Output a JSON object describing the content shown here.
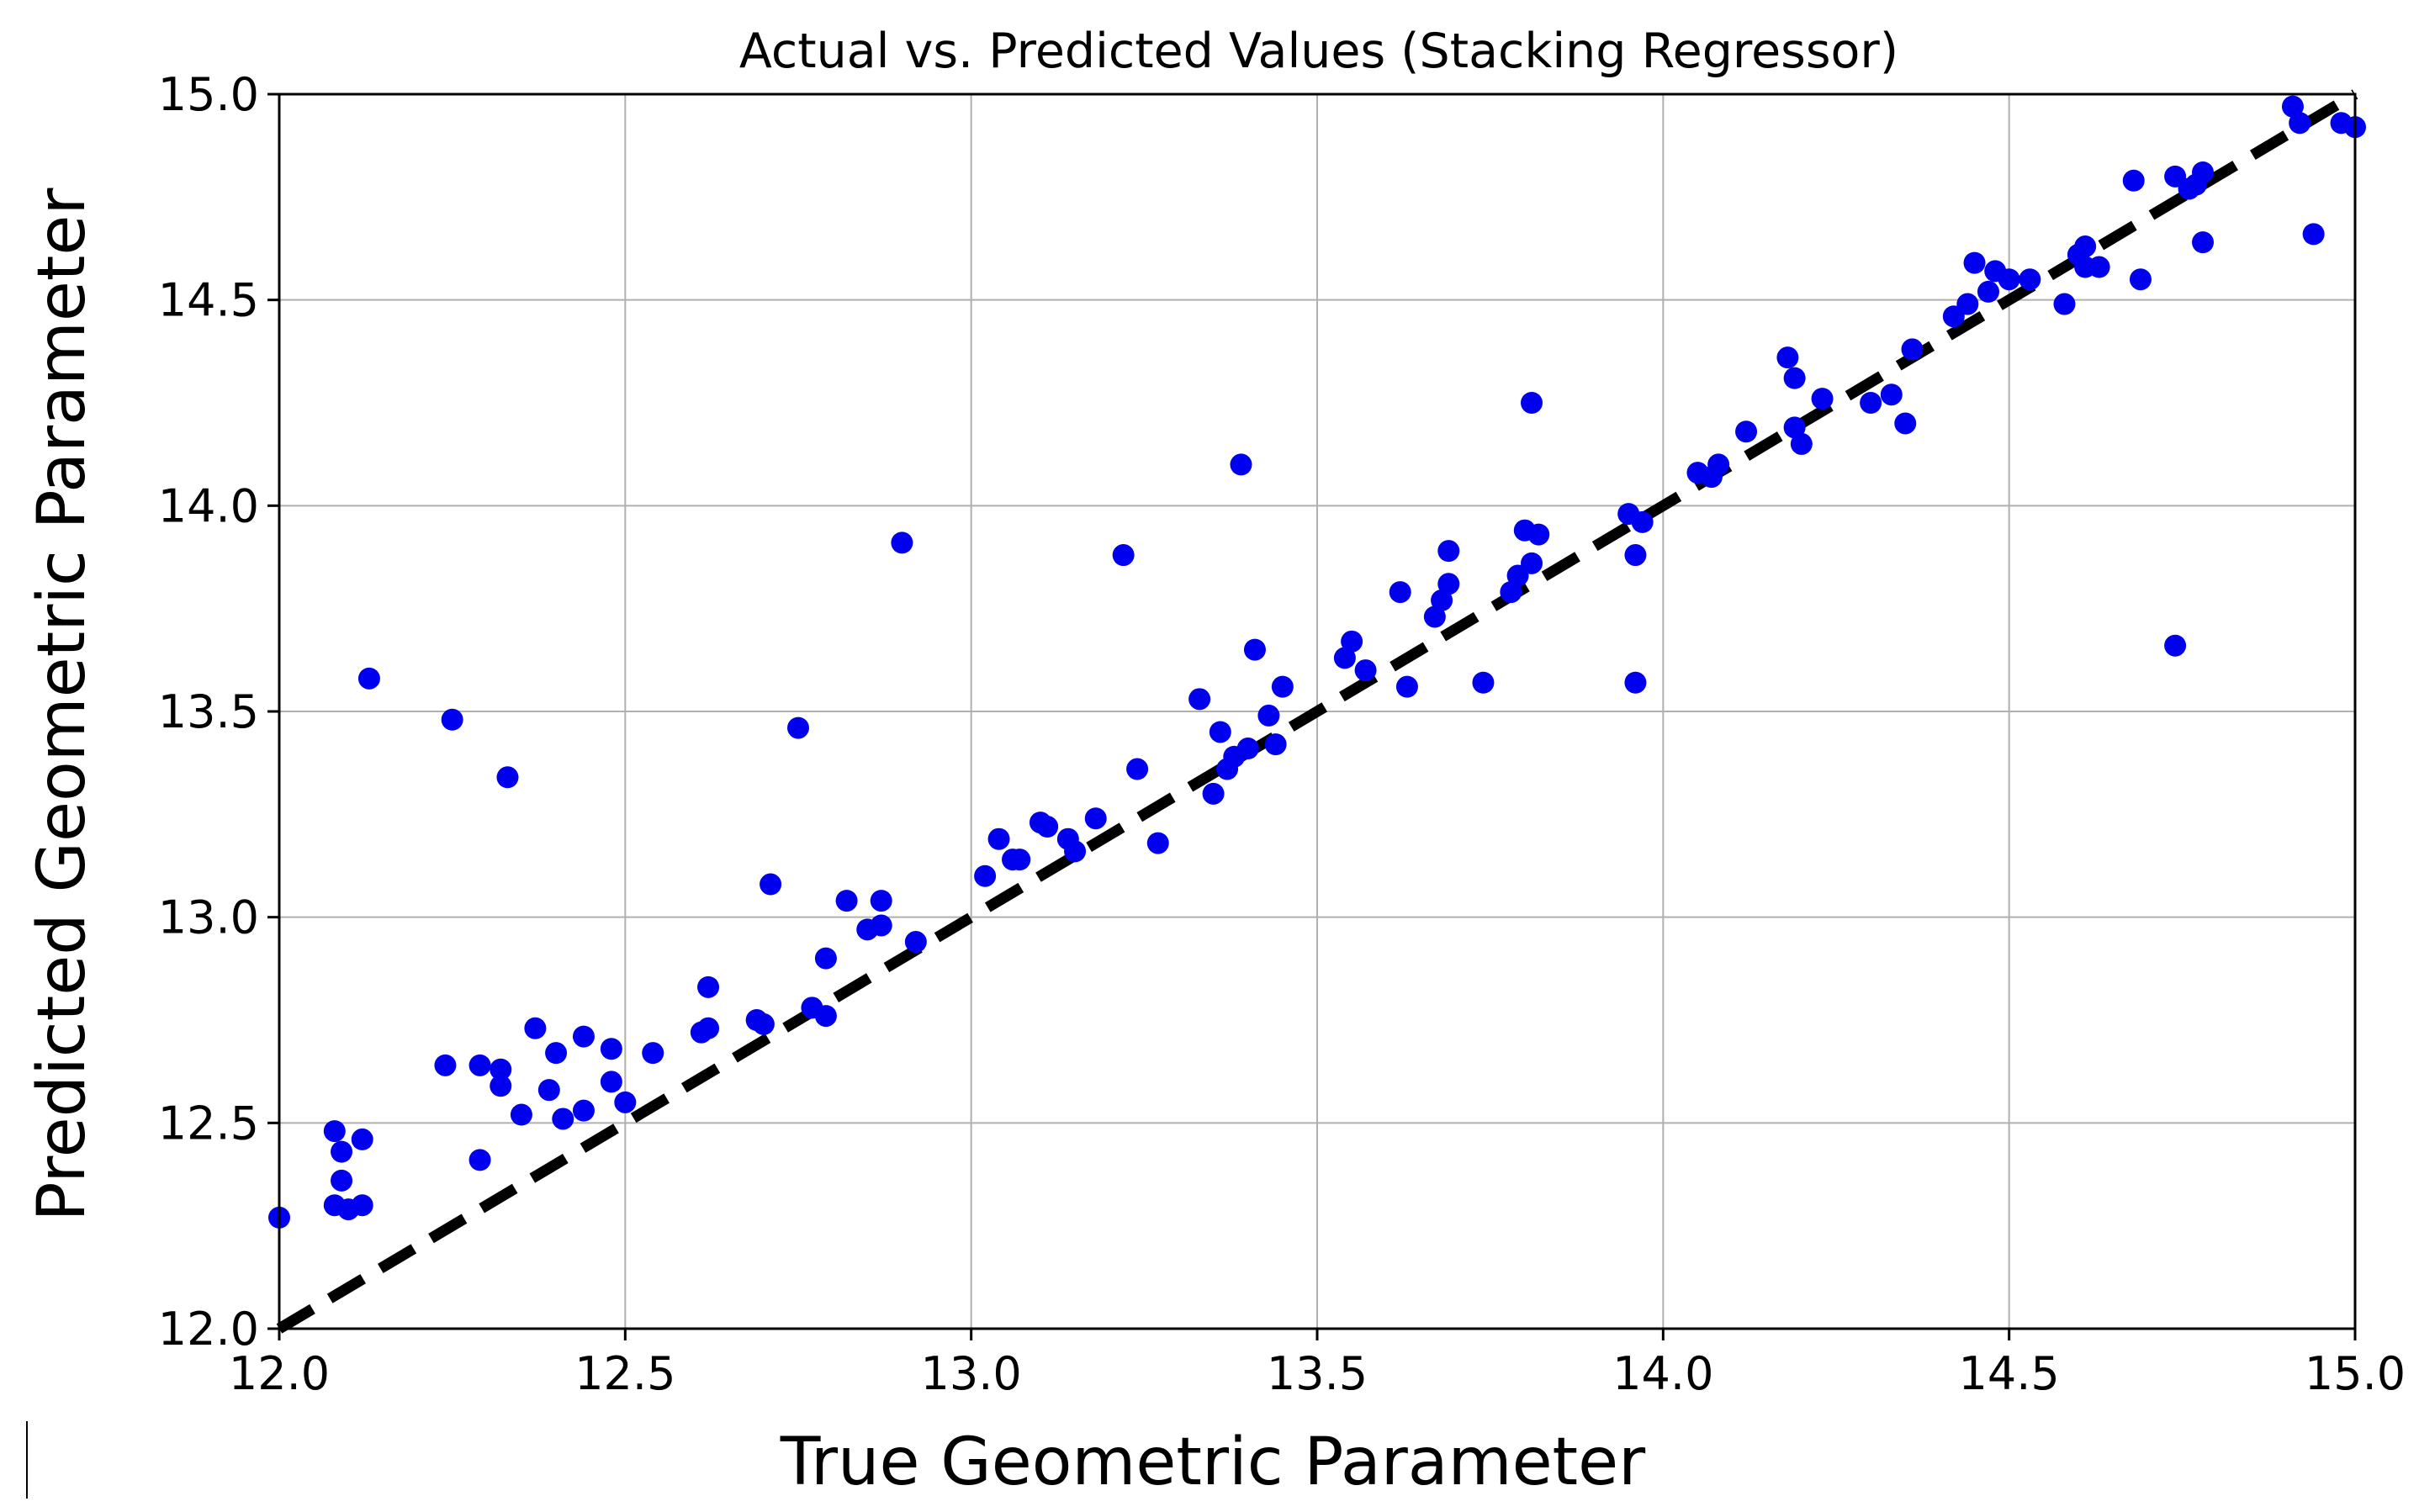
{
  "chart_data": {
    "type": "scatter",
    "title": "Actual vs. Predicted Values (Stacking Regressor)",
    "xlabel": "True Geometric Parameter",
    "ylabel": "Predicted Geometric Parameter",
    "xlim": [
      12.0,
      15.0
    ],
    "ylim": [
      12.0,
      15.0
    ],
    "xticks": [
      "12.0",
      "12.5",
      "13.0",
      "13.5",
      "14.0",
      "14.5",
      "15.0"
    ],
    "yticks": [
      "12.0",
      "12.5",
      "13.0",
      "13.5",
      "14.0",
      "14.5",
      "15.0"
    ],
    "grid": true,
    "point_color": "#0000ee",
    "reference_line": {
      "from": [
        12.0,
        12.0
      ],
      "to": [
        15.0,
        15.0
      ],
      "style": "dashed",
      "color": "#000000"
    },
    "points": [
      [
        12.0,
        12.27
      ],
      [
        12.08,
        12.48
      ],
      [
        12.08,
        12.3
      ],
      [
        12.09,
        12.43
      ],
      [
        12.09,
        12.36
      ],
      [
        12.1,
        12.29
      ],
      [
        12.12,
        12.3
      ],
      [
        12.12,
        12.46
      ],
      [
        12.13,
        13.58
      ],
      [
        12.24,
        12.64
      ],
      [
        12.25,
        13.48
      ],
      [
        12.29,
        12.41
      ],
      [
        12.29,
        12.64
      ],
      [
        12.32,
        12.63
      ],
      [
        12.32,
        12.59
      ],
      [
        12.33,
        13.34
      ],
      [
        12.35,
        12.52
      ],
      [
        12.37,
        12.73
      ],
      [
        12.39,
        12.58
      ],
      [
        12.4,
        12.67
      ],
      [
        12.41,
        12.51
      ],
      [
        12.44,
        12.53
      ],
      [
        12.44,
        12.71
      ],
      [
        12.48,
        12.68
      ],
      [
        12.48,
        12.6
      ],
      [
        12.5,
        12.55
      ],
      [
        12.54,
        12.67
      ],
      [
        12.61,
        12.72
      ],
      [
        12.62,
        12.73
      ],
      [
        12.62,
        12.83
      ],
      [
        12.69,
        12.75
      ],
      [
        12.7,
        12.74
      ],
      [
        12.71,
        13.08
      ],
      [
        12.75,
        13.46
      ],
      [
        12.77,
        12.78
      ],
      [
        12.79,
        12.9
      ],
      [
        12.79,
        12.76
      ],
      [
        12.82,
        13.04
      ],
      [
        12.85,
        12.97
      ],
      [
        12.87,
        12.98
      ],
      [
        12.87,
        13.04
      ],
      [
        12.9,
        13.91
      ],
      [
        12.92,
        12.94
      ],
      [
        13.02,
        13.1
      ],
      [
        13.04,
        13.19
      ],
      [
        13.06,
        13.14
      ],
      [
        13.07,
        13.14
      ],
      [
        13.1,
        13.23
      ],
      [
        13.11,
        13.22
      ],
      [
        13.14,
        13.19
      ],
      [
        13.15,
        13.16
      ],
      [
        13.18,
        13.24
      ],
      [
        13.22,
        13.88
      ],
      [
        13.24,
        13.36
      ],
      [
        13.27,
        13.18
      ],
      [
        13.33,
        13.53
      ],
      [
        13.35,
        13.3
      ],
      [
        13.36,
        13.45
      ],
      [
        13.37,
        13.36
      ],
      [
        13.38,
        13.39
      ],
      [
        13.39,
        14.1
      ],
      [
        13.4,
        13.41
      ],
      [
        13.41,
        13.65
      ],
      [
        13.43,
        13.49
      ],
      [
        13.44,
        13.42
      ],
      [
        13.45,
        13.56
      ],
      [
        13.54,
        13.63
      ],
      [
        13.55,
        13.67
      ],
      [
        13.57,
        13.6
      ],
      [
        13.62,
        13.79
      ],
      [
        13.63,
        13.56
      ],
      [
        13.67,
        13.73
      ],
      [
        13.68,
        13.77
      ],
      [
        13.69,
        13.81
      ],
      [
        13.69,
        13.89
      ],
      [
        13.74,
        13.57
      ],
      [
        13.78,
        13.79
      ],
      [
        13.79,
        13.83
      ],
      [
        13.8,
        13.94
      ],
      [
        13.81,
        13.86
      ],
      [
        13.81,
        14.25
      ],
      [
        13.82,
        13.93
      ],
      [
        13.95,
        13.98
      ],
      [
        13.96,
        13.88
      ],
      [
        13.96,
        13.57
      ],
      [
        13.97,
        13.96
      ],
      [
        14.05,
        14.08
      ],
      [
        14.07,
        14.07
      ],
      [
        14.08,
        14.1
      ],
      [
        14.12,
        14.18
      ],
      [
        14.18,
        14.36
      ],
      [
        14.19,
        14.31
      ],
      [
        14.19,
        14.19
      ],
      [
        14.2,
        14.15
      ],
      [
        14.23,
        14.26
      ],
      [
        14.3,
        14.25
      ],
      [
        14.33,
        14.27
      ],
      [
        14.35,
        14.2
      ],
      [
        14.36,
        14.38
      ],
      [
        14.42,
        14.46
      ],
      [
        14.44,
        14.49
      ],
      [
        14.45,
        14.59
      ],
      [
        14.47,
        14.52
      ],
      [
        14.48,
        14.57
      ],
      [
        14.5,
        14.55
      ],
      [
        14.53,
        14.55
      ],
      [
        14.58,
        14.49
      ],
      [
        14.6,
        14.61
      ],
      [
        14.61,
        14.63
      ],
      [
        14.61,
        14.58
      ],
      [
        14.63,
        14.58
      ],
      [
        14.68,
        14.79
      ],
      [
        14.69,
        14.55
      ],
      [
        14.74,
        14.8
      ],
      [
        14.74,
        13.66
      ],
      [
        14.76,
        14.77
      ],
      [
        14.77,
        14.78
      ],
      [
        14.78,
        14.64
      ],
      [
        14.78,
        14.81
      ],
      [
        14.91,
        14.97
      ],
      [
        14.92,
        14.93
      ],
      [
        14.94,
        14.66
      ],
      [
        14.98,
        14.93
      ],
      [
        15.0,
        14.92
      ]
    ]
  }
}
